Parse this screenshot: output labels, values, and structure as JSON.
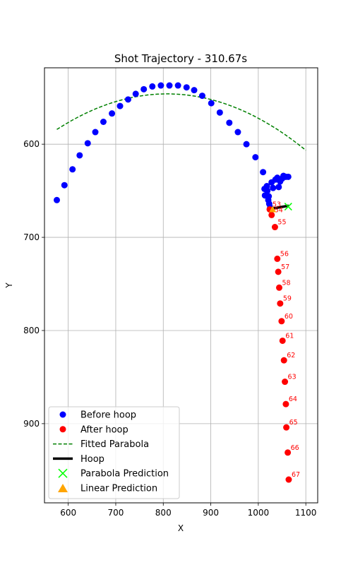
{
  "chart_data": {
    "type": "scatter",
    "title": "Shot Trajectory - 310.67s",
    "xlabel": "X",
    "ylabel": "Y",
    "xlim": [
      550,
      1125
    ],
    "ylim": [
      985,
      518
    ],
    "y_inverted": true,
    "grid": true,
    "x_ticks": [
      600,
      700,
      800,
      900,
      1000,
      1100
    ],
    "y_ticks": [
      600,
      700,
      800,
      900
    ],
    "legend_position": "lower-left",
    "legend": [
      {
        "label": "Before hoop",
        "marker": "circle",
        "color": "#0000ff"
      },
      {
        "label": "After hoop",
        "marker": "circle",
        "color": "#ff0000"
      },
      {
        "label": "Fitted Parabola",
        "marker": "dashed-line",
        "color": "#008000"
      },
      {
        "label": "Hoop",
        "marker": "thick-line",
        "color": "#000000"
      },
      {
        "label": "Parabola Prediction",
        "marker": "x",
        "color": "#00ff00"
      },
      {
        "label": "Linear Prediction",
        "marker": "triangle",
        "color": "#ffa500"
      }
    ],
    "before_hoop": [
      [
        576,
        660
      ],
      [
        592,
        644
      ],
      [
        609,
        627
      ],
      [
        624,
        612
      ],
      [
        641,
        599
      ],
      [
        657,
        587
      ],
      [
        674,
        576
      ],
      [
        692,
        567
      ],
      [
        709,
        559
      ],
      [
        726,
        552
      ],
      [
        742,
        546
      ],
      [
        759,
        541
      ],
      [
        777,
        538
      ],
      [
        795,
        537
      ],
      [
        813,
        537
      ],
      [
        831,
        537
      ],
      [
        849,
        539
      ],
      [
        865,
        542
      ],
      [
        882,
        548
      ],
      [
        901,
        556
      ],
      [
        919,
        566
      ],
      [
        939,
        577
      ],
      [
        957,
        587
      ],
      [
        975,
        600
      ],
      [
        994,
        614
      ],
      [
        1010,
        630
      ],
      [
        1013,
        648
      ],
      [
        1018,
        645
      ],
      [
        1014,
        655
      ],
      [
        1019,
        650
      ],
      [
        1022,
        656
      ],
      [
        1021,
        660
      ],
      [
        1023,
        664
      ],
      [
        1025,
        668
      ],
      [
        1028,
        641
      ],
      [
        1031,
        647
      ],
      [
        1036,
        638
      ],
      [
        1040,
        636
      ],
      [
        1043,
        646
      ],
      [
        1046,
        640
      ],
      [
        1050,
        637
      ],
      [
        1053,
        634
      ],
      [
        1058,
        635
      ],
      [
        1063,
        635
      ]
    ],
    "after_hoop": [
      {
        "id": "53",
        "x": 1024,
        "y": 670
      },
      {
        "id": "54",
        "x": 1028,
        "y": 676
      },
      {
        "id": "55",
        "x": 1035,
        "y": 689
      },
      {
        "id": "56",
        "x": 1040,
        "y": 723
      },
      {
        "id": "57",
        "x": 1042,
        "y": 737
      },
      {
        "id": "58",
        "x": 1044,
        "y": 754
      },
      {
        "id": "59",
        "x": 1046,
        "y": 771
      },
      {
        "id": "60",
        "x": 1049,
        "y": 790
      },
      {
        "id": "61",
        "x": 1051,
        "y": 811
      },
      {
        "id": "62",
        "x": 1054,
        "y": 832
      },
      {
        "id": "63",
        "x": 1056,
        "y": 855
      },
      {
        "id": "64",
        "x": 1058,
        "y": 879
      },
      {
        "id": "65",
        "x": 1059,
        "y": 904
      },
      {
        "id": "66",
        "x": 1062,
        "y": 931
      },
      {
        "id": "67",
        "x": 1064,
        "y": 960
      }
    ],
    "fitted_parabola": {
      "x_start": 576,
      "x_end": 1100,
      "vertex_x": 808,
      "vertex_y": 546,
      "a": 0.00071
    },
    "hoop": {
      "x": [
        1020,
        1064
      ],
      "y": [
        670,
        666
      ]
    },
    "parabola_prediction": {
      "x": 1063,
      "y": 667
    },
    "linear_prediction": {
      "x": 1030,
      "y": 670
    }
  }
}
